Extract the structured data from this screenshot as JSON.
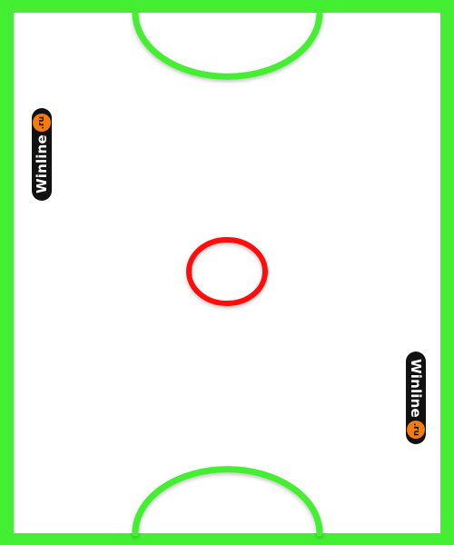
{
  "field": {
    "border_color": "#44ee33",
    "goal_color": "#44ee33",
    "center_line_color": "#ff1111",
    "surface_color": "#ffffff"
  },
  "sponsor": {
    "brand": "Winline",
    "tld": ".ru",
    "badge_color": "#111111",
    "dot_color": "#f47a12"
  }
}
